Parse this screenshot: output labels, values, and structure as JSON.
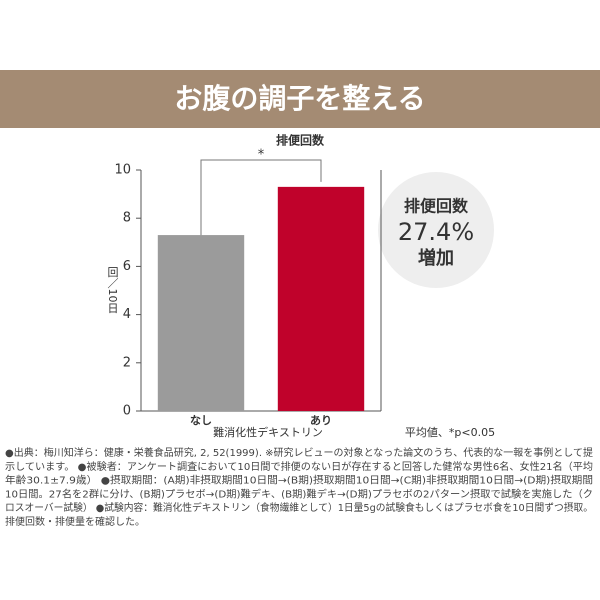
{
  "header": {
    "title": "お腹の調子を整える"
  },
  "chart_data": {
    "type": "bar",
    "title": "排便回数",
    "categories": [
      "なし",
      "あり"
    ],
    "values": [
      7.3,
      9.3
    ],
    "colors": [
      "#9b9b9b",
      "#c0022b"
    ],
    "ylim": [
      0,
      10
    ],
    "yticks": [
      0,
      2,
      4,
      6,
      8,
      10
    ],
    "y_label": "回／10日",
    "x_label": "難消化性デキストリン",
    "significance": "*",
    "note": "平均値、*p<0.05"
  },
  "callout": {
    "label": "排便回数",
    "value": "27.4%",
    "text": "増加"
  },
  "footnote": {
    "lines": [
      "●出典：梅川知洋ら：健康・栄養食品研究, 2, 52(1999). ※研究レビューの対象となった論文のうち、代表的な一報を事例として提",
      "示しています。 ●被験者：アンケート調査において10日間で排便のない日が存在すると回答した健常な男性6名、女性21名（平均",
      "年齢30.1±7.9歳） ●摂取期間：(A期)非摂取期間10日間→(B期)摂取期間10日間→(C期)非摂取期間10日間→(D期)摂取期間",
      "10日間。27名を2群に分け、(B期)プラセボ→(D期)難デキ、(B期)難デキ→(D期)プラセボの2パターン摂取で試験を実施した（ク",
      "ロスオーバー試験） ●試験内容：難消化性デキストリン（食物繊維として）1日量5gの試験食もしくはプラセボ食を10日間ずつ摂取。",
      "排便回数・排便量を確認した。"
    ]
  }
}
